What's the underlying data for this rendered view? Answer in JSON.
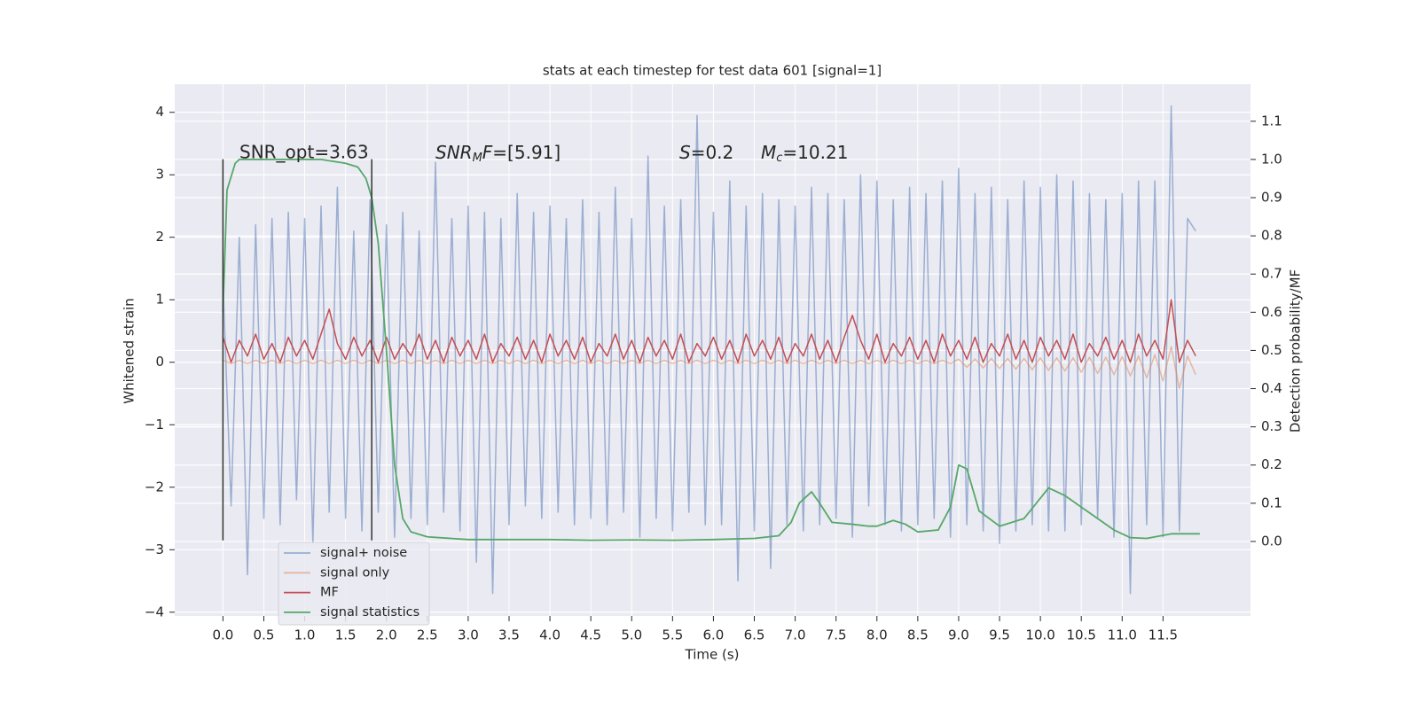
{
  "chart_data": {
    "type": "line",
    "title": "stats at each timestep for test data 601 [signal=1]",
    "xlabel": "Time (s)",
    "ylabel": "Whitened strain",
    "y2label": "Detection probability/MF",
    "xlim": [
      -0.59,
      12.57
    ],
    "ylim": [
      -4.06,
      4.45
    ],
    "y2lim": [
      -0.195,
      1.197
    ],
    "grid": true,
    "xticks": [
      {
        "value": 0,
        "label": "0.0"
      },
      0.5,
      {
        "value": 1,
        "label": "1.0"
      },
      1.5,
      {
        "value": 2,
        "label": "2.0"
      },
      2.5,
      {
        "value": 3,
        "label": "3.0"
      },
      3.5,
      {
        "value": 4,
        "label": "4.0"
      },
      4.5,
      {
        "value": 5,
        "label": "5.0"
      },
      5.5,
      {
        "value": 6,
        "label": "6.0"
      },
      6.5,
      {
        "value": 7,
        "label": "7.0"
      },
      7.5,
      {
        "value": 8,
        "label": "8.0"
      },
      8.5,
      {
        "value": 9,
        "label": "9.0"
      },
      9.5,
      {
        "value": 10,
        "label": "10.0"
      },
      10.5,
      {
        "value": 11,
        "label": "11.0"
      },
      11.5
    ],
    "yticks": [
      {
        "value": -4,
        "label": "−4"
      },
      {
        "value": -3,
        "label": "−3"
      },
      {
        "value": -2,
        "label": "−2"
      },
      {
        "value": -1,
        "label": "−1"
      },
      0,
      1,
      2,
      3,
      4
    ],
    "y2ticks": [
      {
        "value": 0,
        "label": "0.0"
      },
      0.1,
      0.2,
      0.3,
      0.4,
      0.5,
      0.6,
      0.7,
      0.8,
      0.9,
      {
        "value": 1,
        "label": "1.0"
      },
      1.1
    ],
    "annotations": [
      [
        "SNR_opt=3.63"
      ],
      [
        "SNR",
        "M",
        "F",
        "=[5.91]"
      ],
      [
        "S",
        "=0.2"
      ],
      [
        "M",
        "c",
        "=10.21"
      ]
    ],
    "vlines": [
      {
        "x": 0,
        "ymin": -2.85,
        "ymax": 3.25,
        "color": "#333333"
      },
      {
        "x": 1.82,
        "ymin": -2.85,
        "ymax": 3.25,
        "color": "#333333"
      }
    ],
    "x": [
      0,
      0.1,
      0.2,
      0.3,
      0.4,
      0.5,
      0.6,
      0.7,
      0.8,
      0.9,
      1,
      1.1,
      1.2,
      1.3,
      1.4,
      1.5,
      1.6,
      1.7,
      1.8,
      1.9,
      2,
      2.1,
      2.2,
      2.3,
      2.4,
      2.5,
      2.6,
      2.7,
      2.8,
      2.9,
      3,
      3.1,
      3.2,
      3.3,
      3.4,
      3.5,
      3.6,
      3.7,
      3.8,
      3.9,
      4,
      4.1,
      4.2,
      4.3,
      4.4,
      4.5,
      4.6,
      4.7,
      4.8,
      4.9,
      5,
      5.1,
      5.2,
      5.3,
      5.4,
      5.5,
      5.6,
      5.7,
      5.8,
      5.9,
      6,
      6.1,
      6.2,
      6.3,
      6.4,
      6.5,
      6.6,
      6.7,
      6.8,
      6.9,
      7,
      7.1,
      7.2,
      7.3,
      7.4,
      7.5,
      7.6,
      7.7,
      7.8,
      7.9,
      8,
      8.1,
      8.2,
      8.3,
      8.4,
      8.5,
      8.6,
      8.7,
      8.8,
      8.9,
      9,
      9.1,
      9.2,
      9.3,
      9.4,
      9.5,
      9.6,
      9.7,
      9.8,
      9.9,
      10,
      10.1,
      10.2,
      10.3,
      10.4,
      10.5,
      10.6,
      10.7,
      10.8,
      10.9,
      11,
      11.1,
      11.2,
      11.3,
      11.4,
      11.5,
      11.6,
      11.7,
      11.8,
      11.9
    ],
    "series": [
      {
        "name": "signal+ noise",
        "color": "#4c72b0",
        "opacity": 0.5,
        "values": [
          1.3,
          -2.3,
          2.0,
          -3.4,
          2.2,
          -2.5,
          2.3,
          -2.6,
          2.4,
          -2.2,
          2.3,
          -2.9,
          2.5,
          -2.4,
          2.8,
          -2.5,
          2.1,
          -2.7,
          2.6,
          -2.4,
          2.2,
          -2.8,
          2.4,
          -2.5,
          2.1,
          -2.6,
          3.2,
          -2.4,
          2.3,
          -2.7,
          2.5,
          -3.2,
          2.4,
          -3.7,
          2.3,
          -2.6,
          2.7,
          -2.3,
          2.4,
          -2.5,
          2.5,
          -2.4,
          2.3,
          -2.6,
          2.6,
          -2.5,
          2.4,
          -2.6,
          2.8,
          -2.4,
          2.3,
          -2.8,
          3.3,
          -2.5,
          2.5,
          -2.7,
          2.6,
          -2.4,
          3.95,
          -2.6,
          2.4,
          -2.6,
          2.9,
          -3.5,
          2.5,
          -2.7,
          2.7,
          -3.3,
          2.6,
          -2.6,
          2.5,
          -2.7,
          2.8,
          -2.6,
          2.7,
          -2.5,
          2.6,
          -2.8,
          3.0,
          -2.3,
          2.9,
          -2.6,
          2.6,
          -2.7,
          2.8,
          -2.6,
          2.7,
          -2.5,
          2.9,
          -2.8,
          3.1,
          -2.6,
          2.7,
          -2.7,
          2.8,
          -2.9,
          2.6,
          -2.7,
          2.9,
          -2.6,
          2.8,
          -2.7,
          3.0,
          -2.7,
          2.9,
          -2.6,
          2.7,
          -2.5,
          2.6,
          -2.8,
          2.7,
          -3.7,
          2.9,
          -2.6,
          2.9,
          -2.8,
          4.1,
          -2.7,
          2.3,
          2.1
        ]
      },
      {
        "name": "signal only",
        "color": "#dd8452",
        "opacity": 0.5,
        "values": [
          0.03,
          -0.02,
          0.03,
          -0.02,
          0.03,
          -0.02,
          0.03,
          -0.02,
          0.03,
          -0.02,
          0.03,
          -0.02,
          0.03,
          -0.02,
          0.03,
          -0.02,
          0.03,
          -0.02,
          0.03,
          -0.02,
          0.03,
          -0.02,
          0.03,
          -0.02,
          0.03,
          -0.02,
          0.03,
          -0.02,
          0.03,
          -0.02,
          0.03,
          -0.02,
          0.03,
          -0.02,
          0.03,
          -0.02,
          0.03,
          -0.02,
          0.03,
          -0.02,
          0.03,
          -0.02,
          0.03,
          -0.02,
          0.03,
          -0.02,
          0.03,
          -0.02,
          0.03,
          -0.02,
          0.03,
          -0.02,
          0.03,
          -0.02,
          0.03,
          -0.02,
          0.03,
          -0.02,
          0.03,
          -0.02,
          0.03,
          -0.02,
          0.03,
          -0.02,
          0.03,
          -0.02,
          0.03,
          -0.02,
          0.03,
          -0.02,
          0.03,
          -0.02,
          0.03,
          -0.02,
          0.03,
          -0.02,
          0.03,
          -0.02,
          0.03,
          -0.02,
          0.03,
          -0.02,
          0.03,
          -0.02,
          0.03,
          -0.02,
          0.03,
          -0.02,
          0.03,
          -0.02,
          0.05,
          -0.08,
          0.05,
          -0.09,
          0.06,
          -0.1,
          0.06,
          -0.11,
          0.06,
          -0.12,
          0.07,
          -0.13,
          0.07,
          -0.14,
          0.07,
          -0.16,
          0.08,
          -0.18,
          0.08,
          -0.2,
          0.09,
          -0.22,
          0.1,
          -0.25,
          0.12,
          -0.3,
          0.25,
          -0.42,
          0.1,
          -0.2
        ]
      },
      {
        "name": "MF",
        "color": "#c44e52",
        "opacity": 1,
        "values": [
          0.4,
          0.0,
          0.35,
          0.1,
          0.45,
          0.05,
          0.3,
          0.0,
          0.4,
          0.1,
          0.35,
          0.05,
          0.45,
          0.85,
          0.3,
          0.05,
          0.4,
          0.1,
          0.35,
          0.0,
          0.4,
          0.05,
          0.3,
          0.1,
          0.45,
          0.05,
          0.35,
          0.0,
          0.4,
          0.1,
          0.35,
          0.05,
          0.45,
          0.0,
          0.3,
          0.1,
          0.4,
          0.05,
          0.35,
          0.0,
          0.45,
          0.1,
          0.35,
          0.05,
          0.4,
          0.0,
          0.3,
          0.1,
          0.45,
          0.05,
          0.35,
          0.0,
          0.4,
          0.1,
          0.35,
          0.05,
          0.45,
          0.0,
          0.3,
          0.1,
          0.4,
          0.05,
          0.35,
          0.0,
          0.45,
          0.1,
          0.35,
          0.05,
          0.4,
          0.0,
          0.3,
          0.1,
          0.45,
          0.05,
          0.35,
          0.0,
          0.4,
          0.75,
          0.35,
          0.05,
          0.45,
          0.0,
          0.3,
          0.1,
          0.4,
          0.05,
          0.35,
          0.0,
          0.45,
          0.1,
          0.35,
          0.05,
          0.4,
          0.0,
          0.3,
          0.1,
          0.45,
          0.05,
          0.35,
          0.0,
          0.4,
          0.1,
          0.35,
          0.05,
          0.45,
          0.0,
          0.3,
          0.1,
          0.4,
          0.05,
          0.35,
          0.0,
          0.45,
          0.1,
          0.35,
          0.05,
          1.0,
          0.0,
          0.35,
          0.1
        ]
      },
      {
        "name": "signal statistics",
        "color": "#55a868",
        "opacity": 1,
        "axis": "y2",
        "x": [
          0,
          0.05,
          0.15,
          0.2,
          0.6,
          1.2,
          1.5,
          1.65,
          1.75,
          1.82,
          1.9,
          2.0,
          2.1,
          2.2,
          2.3,
          2.5,
          3.0,
          4.0,
          4.5,
          5.0,
          5.5,
          6.0,
          6.5,
          6.8,
          6.95,
          7.05,
          7.2,
          7.3,
          7.45,
          7.7,
          7.9,
          8.0,
          8.2,
          8.35,
          8.5,
          8.75,
          8.9,
          9.0,
          9.1,
          9.25,
          9.5,
          9.8,
          10.1,
          10.3,
          10.6,
          10.9,
          11.1,
          11.3,
          11.6,
          11.95
        ],
        "values": [
          0.6,
          0.92,
          0.99,
          1.0,
          1.0,
          1.0,
          0.99,
          0.98,
          0.95,
          0.9,
          0.78,
          0.5,
          0.2,
          0.06,
          0.025,
          0.012,
          0.005,
          0.005,
          0.003,
          0.004,
          0.003,
          0.005,
          0.008,
          0.015,
          0.05,
          0.1,
          0.13,
          0.1,
          0.05,
          0.045,
          0.04,
          0.04,
          0.055,
          0.045,
          0.025,
          0.03,
          0.09,
          0.2,
          0.19,
          0.08,
          0.04,
          0.06,
          0.14,
          0.12,
          0.075,
          0.03,
          0.01,
          0.008,
          0.02,
          0.02
        ]
      }
    ]
  }
}
